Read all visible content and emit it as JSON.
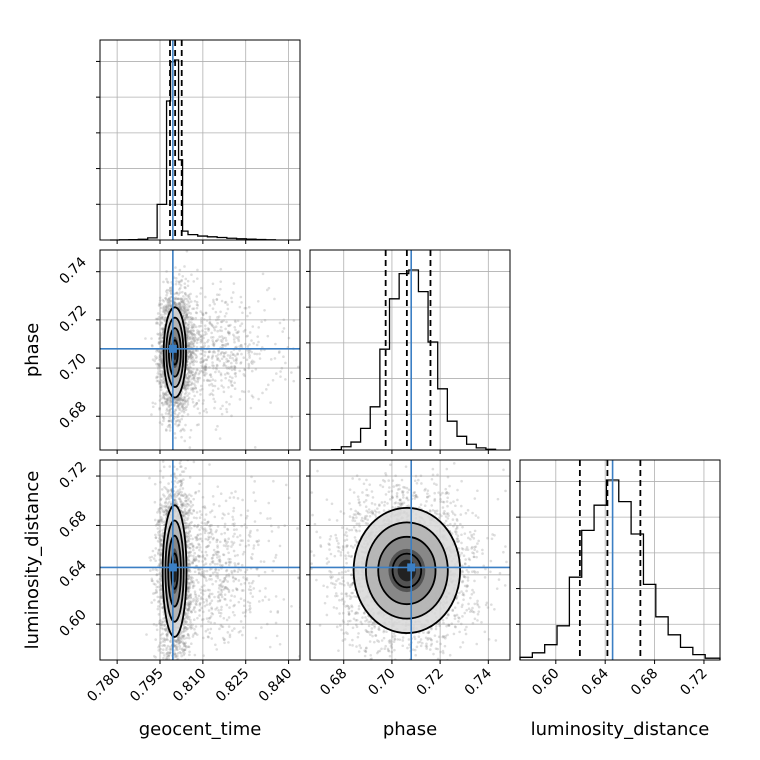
{
  "chart_data": {
    "type": "corner",
    "parameters": [
      {
        "name": "geocent_time",
        "label": "geocent_time",
        "range": [
          0.774,
          0.844
        ],
        "ticks": [
          0.78,
          0.795,
          0.81,
          0.825,
          0.84
        ],
        "tick_labels": [
          "0.780",
          "0.795",
          "0.810",
          "0.825",
          "0.840"
        ],
        "truth": 0.7995,
        "quantiles": [
          0.7985,
          0.8003,
          0.8026
        ]
      },
      {
        "name": "phase",
        "label": "phase",
        "range": [
          0.666,
          0.749
        ],
        "ticks": [
          0.68,
          0.7,
          0.72,
          0.74
        ],
        "tick_labels": [
          "0.68",
          "0.70",
          "0.72",
          "0.74"
        ],
        "truth": 0.708,
        "quantiles": [
          0.6974,
          0.7062,
          0.716
        ]
      },
      {
        "name": "luminosity_distance",
        "label": "luminosity_distance",
        "range": [
          0.571,
          0.733
        ],
        "ticks": [
          0.6,
          0.64,
          0.68,
          0.72
        ],
        "tick_labels": [
          "0.60",
          "0.64",
          "0.68",
          "0.72"
        ],
        "truth": 0.646,
        "quantiles": [
          0.6195,
          0.6418,
          0.6685
        ]
      }
    ],
    "histograms": [
      {
        "parameter": "geocent_time",
        "bin_edges": [
          0.7775,
          0.7808,
          0.7841,
          0.7874,
          0.7907,
          0.794,
          0.7973,
          0.7987,
          0.8001,
          0.8015,
          0.8029,
          0.8048,
          0.8082,
          0.8116,
          0.815,
          0.8184,
          0.8218,
          0.8252,
          0.8286,
          0.832,
          0.8354
        ],
        "counts": [
          0,
          1,
          2,
          4,
          12,
          200,
          780,
          1000,
          1010,
          450,
          50,
          30,
          22,
          18,
          14,
          10,
          7,
          5,
          3,
          1
        ]
      },
      {
        "parameter": "phase",
        "bin_edges": [
          0.675,
          0.679,
          0.683,
          0.687,
          0.691,
          0.695,
          0.699,
          0.703,
          0.707,
          0.711,
          0.715,
          0.719,
          0.723,
          0.727,
          0.731,
          0.735,
          0.739,
          0.743
        ],
        "counts": [
          2,
          18,
          44,
          120,
          240,
          560,
          840,
          980,
          1000,
          880,
          600,
          340,
          160,
          76,
          32,
          12,
          4
        ]
      },
      {
        "parameter": "luminosity_distance",
        "bin_edges": [
          0.571,
          0.581,
          0.591,
          0.601,
          0.611,
          0.621,
          0.631,
          0.641,
          0.651,
          0.661,
          0.671,
          0.681,
          0.691,
          0.701,
          0.711,
          0.721,
          0.733
        ],
        "counts": [
          15,
          40,
          85,
          190,
          460,
          720,
          860,
          1000,
          880,
          700,
          420,
          240,
          140,
          70,
          30,
          10
        ]
      }
    ],
    "pairs": [
      {
        "x": "geocent_time",
        "y": "phase",
        "center": [
          0.8002,
          0.7065
        ],
        "sigma": [
          0.0015,
          0.0072
        ],
        "tail_x_max": 0.835
      },
      {
        "x": "geocent_time",
        "y": "luminosity_distance",
        "center": [
          0.8001,
          0.643
        ],
        "sigma": [
          0.0016,
          0.0205
        ],
        "tail_x_max": 0.835
      },
      {
        "x": "phase",
        "y": "luminosity_distance",
        "center": [
          0.7062,
          0.6435
        ],
        "sigma": [
          0.0085,
          0.0195
        ],
        "tail_x_max": null
      }
    ],
    "truth_color": "#3b7fc4",
    "quantile_style": "dashed black"
  }
}
